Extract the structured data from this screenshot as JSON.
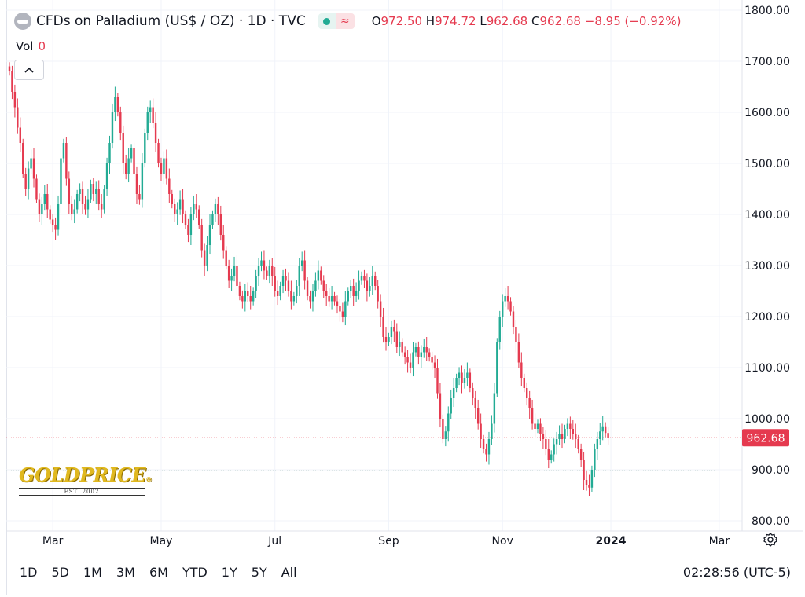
{
  "header": {
    "title": "CFDs on Palladium (US$ / OZ) · 1D · TVC",
    "ohlc": {
      "o_label": "O",
      "o": "972.50",
      "h_label": "H",
      "h": "974.72",
      "l_label": "L",
      "l": "962.68",
      "c_label": "C",
      "c": "962.68",
      "change": "−8.95 (−0.92%)"
    },
    "vol_label": "Vol",
    "vol_value": "0",
    "collapse_icon": "chevron-up-icon"
  },
  "colors": {
    "up": "#22ab94",
    "down": "#e53a4f",
    "grid": "#f0f3fa",
    "axis_text": "#131722"
  },
  "logo": {
    "brand": "GOLDPRICE",
    "registered": "®",
    "est": "EST. 2002"
  },
  "toolbar": {
    "ranges": [
      "1D",
      "5D",
      "1M",
      "3M",
      "6M",
      "YTD",
      "1Y",
      "5Y",
      "All"
    ],
    "clock": "02:28:56 (UTC-5)",
    "settings_icon": "settings-icon"
  },
  "chart_data": {
    "type": "candlestick",
    "title": "CFDs on Palladium (US$ / OZ) · 1D · TVC",
    "ylim": [
      780,
      1820
    ],
    "y_ticks": [
      800,
      900,
      1000,
      1100,
      1200,
      1300,
      1400,
      1500,
      1600,
      1700,
      1800
    ],
    "y_tick_labels": [
      "800.00",
      "900.00",
      "1000.00",
      "1100.00",
      "1200.00",
      "1300.00",
      "1400.00",
      "1500.00",
      "1600.00",
      "1700.00",
      "1800.00"
    ],
    "x_range": [
      0,
      260
    ],
    "x_ticks": [
      {
        "x": 16,
        "label": "Mar"
      },
      {
        "x": 56,
        "label": "May"
      },
      {
        "x": 98,
        "label": "Jul"
      },
      {
        "x": 140,
        "label": "Sep"
      },
      {
        "x": 182,
        "label": "Nov"
      },
      {
        "x": 222,
        "label": "2024"
      },
      {
        "x": 262,
        "label": "Mar"
      }
    ],
    "last_price": 962.68,
    "last_price_label": "962.68",
    "reference_line": 898,
    "close_series": [
      1680,
      1640,
      1610,
      1570,
      1540,
      1480,
      1450,
      1490,
      1510,
      1470,
      1430,
      1400,
      1420,
      1440,
      1410,
      1390,
      1380,
      1370,
      1420,
      1510,
      1540,
      1470,
      1420,
      1400,
      1410,
      1440,
      1450,
      1420,
      1410,
      1430,
      1460,
      1440,
      1450,
      1420,
      1410,
      1450,
      1500,
      1540,
      1600,
      1630,
      1600,
      1560,
      1500,
      1480,
      1510,
      1530,
      1480,
      1440,
      1430,
      1500,
      1560,
      1600,
      1610,
      1580,
      1540,
      1500,
      1480,
      1510,
      1470,
      1440,
      1420,
      1400,
      1410,
      1430,
      1400,
      1380,
      1360,
      1400,
      1420,
      1410,
      1380,
      1330,
      1300,
      1340,
      1380,
      1400,
      1420,
      1400,
      1360,
      1330,
      1300,
      1270,
      1280,
      1300,
      1260,
      1240,
      1230,
      1250,
      1240,
      1230,
      1250,
      1280,
      1300,
      1310,
      1290,
      1280,
      1300,
      1280,
      1250,
      1240,
      1260,
      1280,
      1270,
      1250,
      1230,
      1240,
      1260,
      1300,
      1310,
      1270,
      1240,
      1230,
      1250,
      1270,
      1290,
      1270,
      1250,
      1240,
      1230,
      1240,
      1230,
      1220,
      1210,
      1200,
      1230,
      1250,
      1260,
      1240,
      1250,
      1270,
      1280,
      1270,
      1250,
      1260,
      1280,
      1260,
      1230,
      1200,
      1160,
      1150,
      1160,
      1180,
      1170,
      1140,
      1150,
      1130,
      1120,
      1110,
      1100,
      1130,
      1140,
      1120,
      1130,
      1140,
      1130,
      1120,
      1110,
      1100,
      1050,
      1000,
      960,
      975,
      1010,
      1040,
      1060,
      1080,
      1090,
      1070,
      1080,
      1090,
      1060,
      1040,
      1020,
      990,
      960,
      940,
      930,
      960,
      990,
      1050,
      1150,
      1200,
      1230,
      1240,
      1230,
      1210,
      1180,
      1150,
      1110,
      1080,
      1060,
      1040,
      1020,
      990,
      980,
      990,
      970,
      960,
      940,
      920,
      930,
      950,
      960,
      970,
      960,
      980,
      990,
      980,
      970,
      960,
      940,
      920,
      880,
      870,
      865,
      900,
      940,
      960,
      975,
      985,
      972,
      963
    ],
    "ohlc_last": {
      "open": 972.5,
      "high": 974.72,
      "low": 962.68,
      "close": 962.68
    }
  }
}
